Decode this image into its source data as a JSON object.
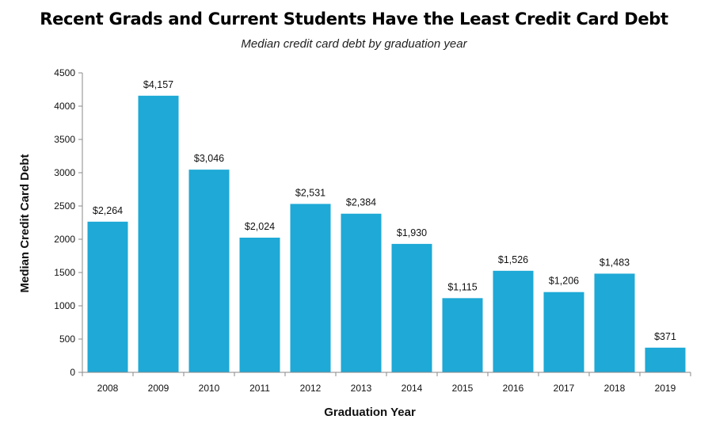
{
  "chart_data": {
    "type": "bar",
    "title": "Recent Grads and Current Students Have the Least Credit Card Debt",
    "subtitle": "Median credit card debt by graduation year",
    "xlabel": "Graduation Year",
    "ylabel": "Median  Credit Card Debt",
    "categories": [
      "2008",
      "2009",
      "2010",
      "2011",
      "2012",
      "2013",
      "2014",
      "2015",
      "2016",
      "2017",
      "2018",
      "2019"
    ],
    "values": [
      2264,
      4157,
      3046,
      2024,
      2531,
      2384,
      1930,
      1115,
      1526,
      1206,
      1483,
      371
    ],
    "data_labels": [
      "$2,264",
      "$4,157",
      "$3,046",
      "$2,024",
      "$2,531",
      "$2,384",
      "$1,930",
      "$1,115",
      "$1,526",
      "$1,206",
      "$1,483",
      "$371"
    ],
    "y_ticks": [
      "0",
      "500",
      "1000",
      "1500",
      "2000",
      "2500",
      "3000",
      "3500",
      "4000",
      "4500"
    ],
    "ylim": [
      0,
      4500
    ],
    "grid": false,
    "legend": "none",
    "bar_color": "#1ea9d6",
    "axis_color": "#888888"
  }
}
